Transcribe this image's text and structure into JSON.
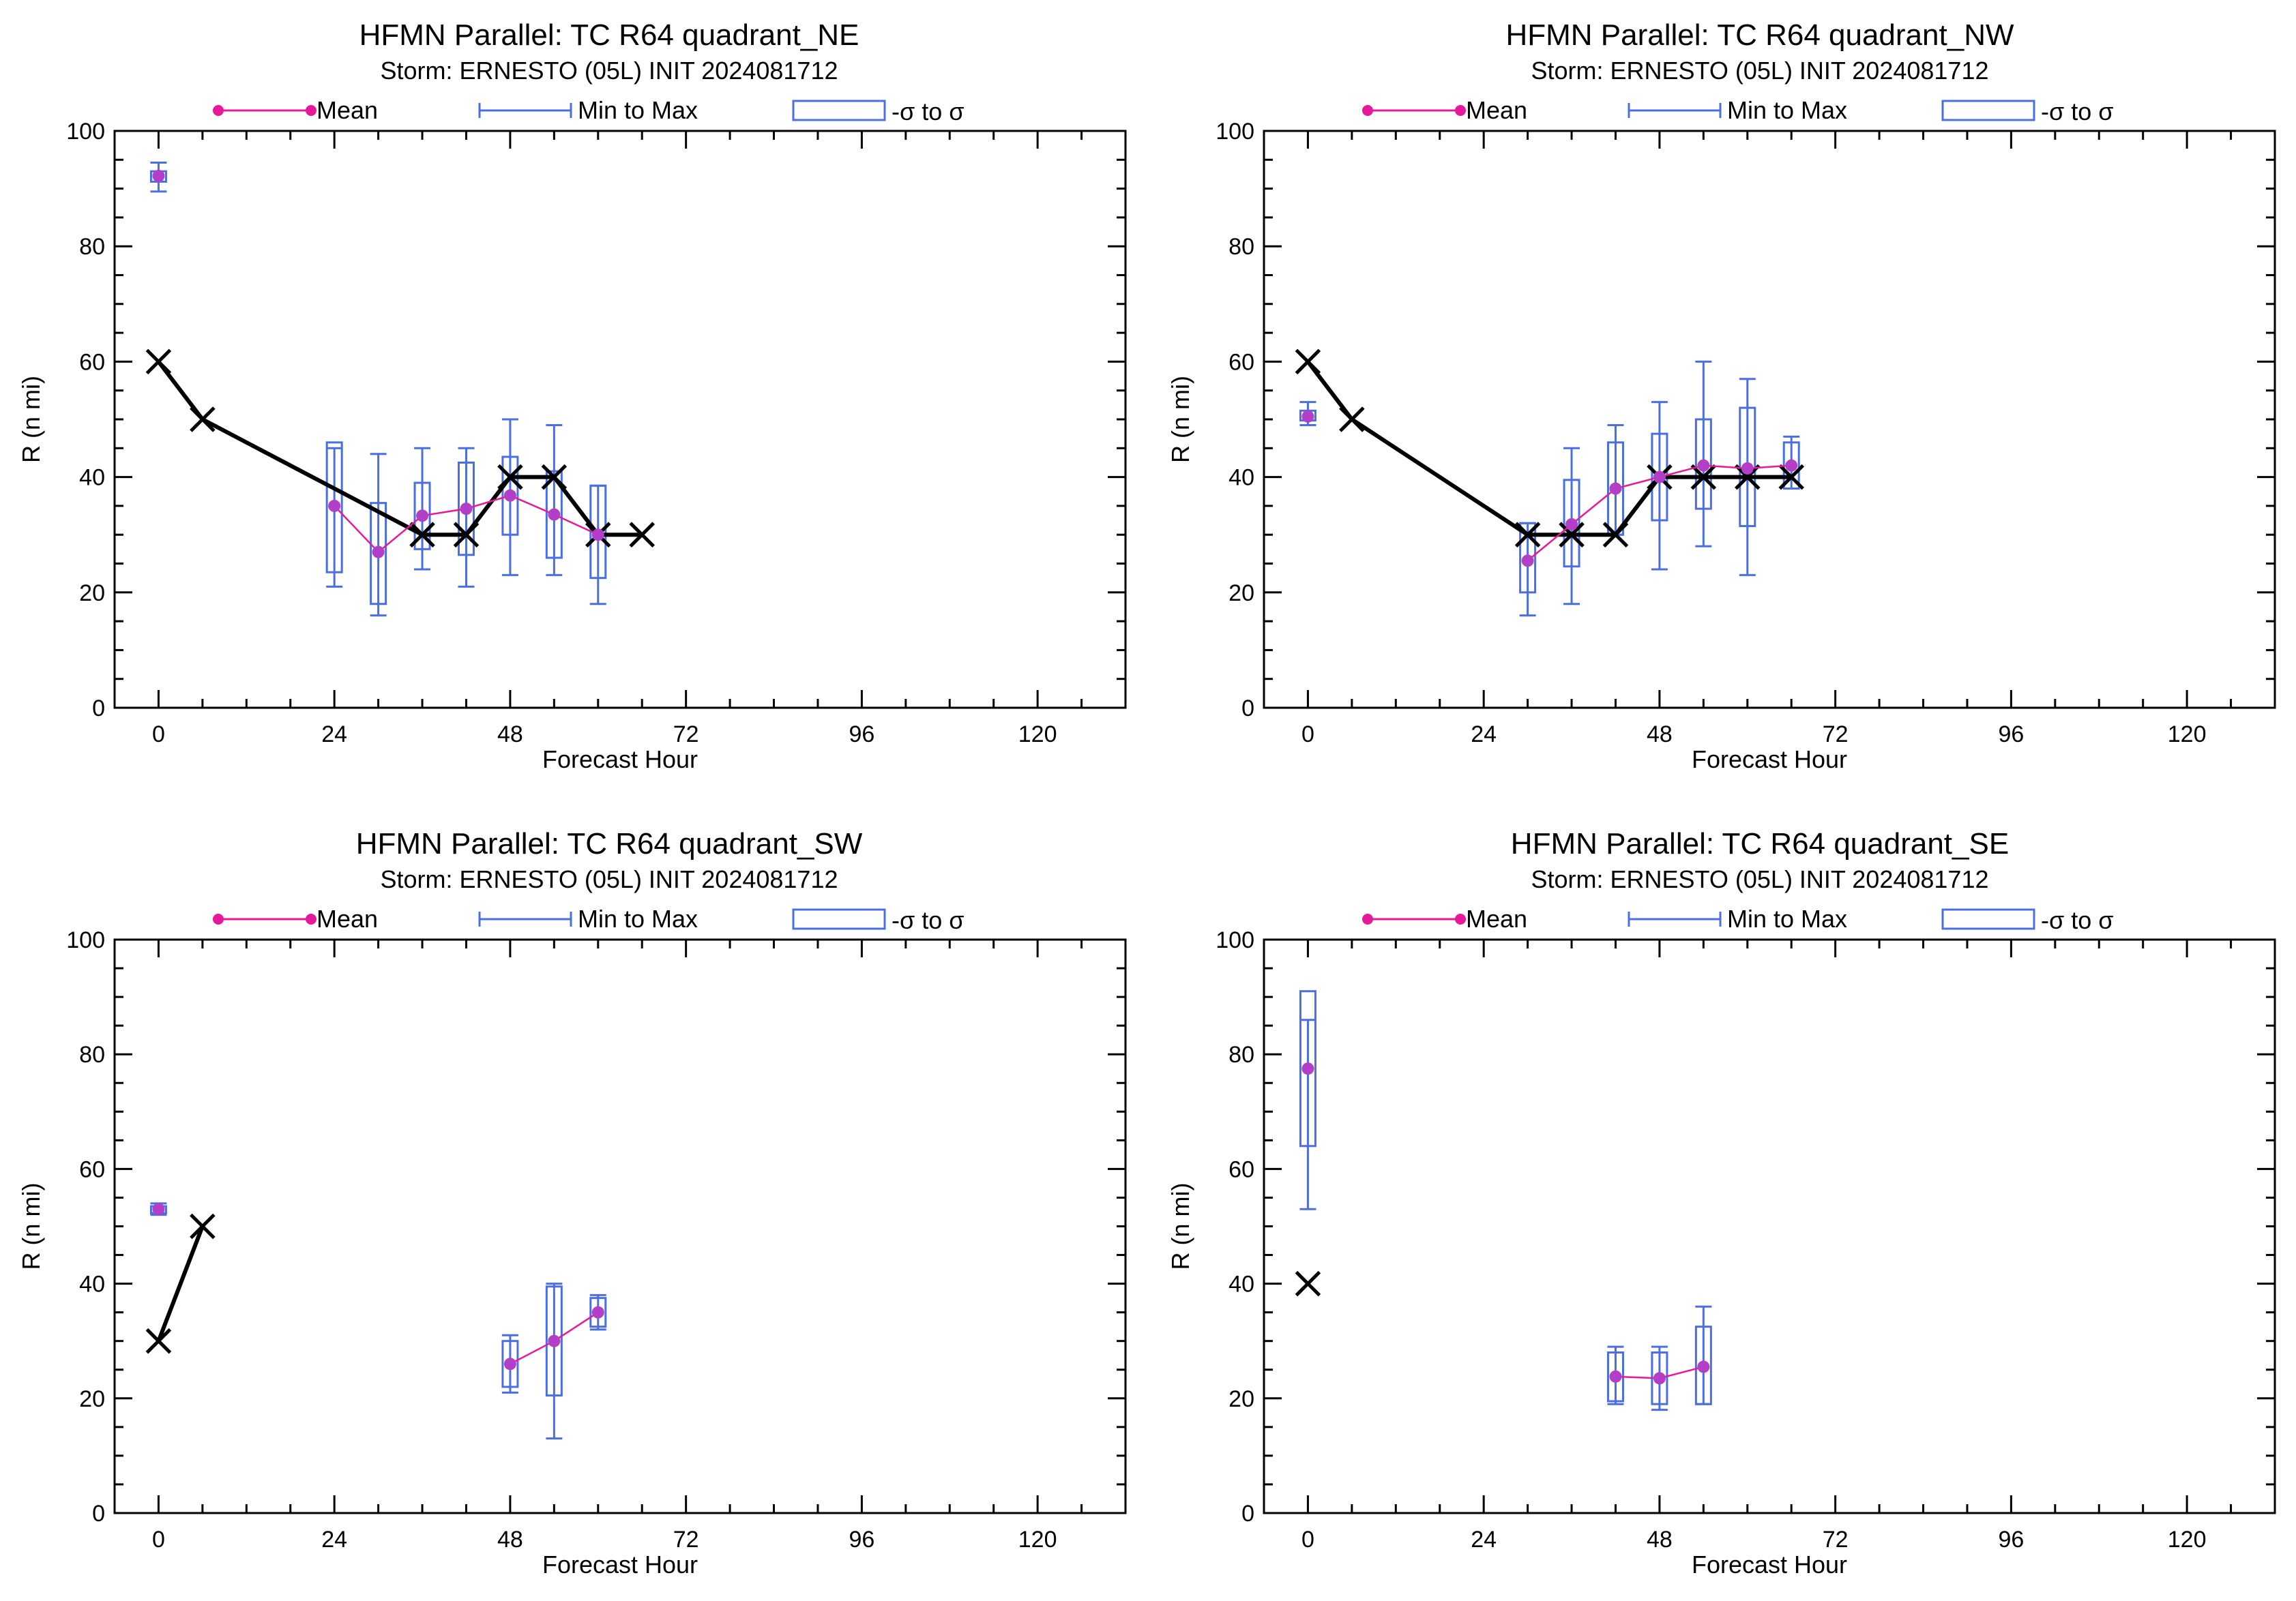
{
  "colors": {
    "mean": "#e8189a",
    "mean_dot": "#b33fc8",
    "range": "#4b6fe0",
    "best_track": "#000000"
  },
  "legend": {
    "mean": "Mean",
    "range": "Min to Max",
    "sigma": "-σ to σ"
  },
  "chart_data": [
    {
      "type": "box",
      "title": "HFMN Parallel: TC  R64 quadrant_NE",
      "subtitle": "Storm: ERNESTO (05L) INIT 2024081712",
      "xlabel": "Forecast Hour",
      "ylabel": "R (n mi)",
      "xlim": [
        -6,
        132
      ],
      "ylim": [
        0,
        100
      ],
      "xticks": [
        0,
        24,
        48,
        72,
        96,
        120
      ],
      "yticks": [
        0,
        20,
        40,
        60,
        80,
        100
      ],
      "legend_position": "top",
      "stats": [
        {
          "x": 0,
          "mean": 92.2,
          "min": 89.5,
          "max": 94.5,
          "sd_low": 91.2,
          "sd_high": 93.0
        },
        {
          "x": 24,
          "mean": 35.0,
          "min": 21.0,
          "max": 45.0,
          "sd_low": 23.5,
          "sd_high": 46.0
        },
        {
          "x": 30,
          "mean": 27.0,
          "min": 16.0,
          "max": 44.0,
          "sd_low": 18.0,
          "sd_high": 35.5
        },
        {
          "x": 36,
          "mean": 33.3,
          "min": 24.0,
          "max": 45.0,
          "sd_low": 27.5,
          "sd_high": 39.0
        },
        {
          "x": 42,
          "mean": 34.5,
          "min": 21.0,
          "max": 45.0,
          "sd_low": 26.5,
          "sd_high": 42.5
        },
        {
          "x": 48,
          "mean": 36.8,
          "min": 23.0,
          "max": 50.0,
          "sd_low": 30.0,
          "sd_high": 43.5
        },
        {
          "x": 54,
          "mean": 33.5,
          "min": 23.0,
          "max": 49.0,
          "sd_low": 26.0,
          "sd_high": 41.0
        },
        {
          "x": 60,
          "mean": 30.0,
          "min": 18.0,
          "max": 38.5,
          "sd_low": 22.5,
          "sd_high": 38.5
        }
      ],
      "best_track": [
        {
          "x": 0,
          "y": 60
        },
        {
          "x": 6,
          "y": 50
        },
        {
          "x": 36,
          "y": 30
        },
        {
          "x": 42,
          "y": 30
        },
        {
          "x": 48,
          "y": 40
        },
        {
          "x": 54,
          "y": 40
        },
        {
          "x": 60,
          "y": 30
        },
        {
          "x": 66,
          "y": 30
        }
      ]
    },
    {
      "type": "box",
      "title": "HFMN Parallel: TC  R64 quadrant_NW",
      "subtitle": "Storm: ERNESTO (05L) INIT 2024081712",
      "xlabel": "Forecast Hour",
      "ylabel": "R (n mi)",
      "xlim": [
        -6,
        132
      ],
      "ylim": [
        0,
        100
      ],
      "xticks": [
        0,
        24,
        48,
        72,
        96,
        120
      ],
      "yticks": [
        0,
        20,
        40,
        60,
        80,
        100
      ],
      "legend_position": "top",
      "stats": [
        {
          "x": 0,
          "mean": 50.5,
          "min": 49.0,
          "max": 53.0,
          "sd_low": 49.8,
          "sd_high": 51.5
        },
        {
          "x": 30,
          "mean": 25.5,
          "min": 16.0,
          "max": 32.0,
          "sd_low": 20.0,
          "sd_high": 32.0
        },
        {
          "x": 36,
          "mean": 31.8,
          "min": 18.0,
          "max": 45.0,
          "sd_low": 24.5,
          "sd_high": 39.5
        },
        {
          "x": 42,
          "mean": 38.0,
          "min": 30.0,
          "max": 49.0,
          "sd_low": 30.0,
          "sd_high": 46.0
        },
        {
          "x": 48,
          "mean": 40.0,
          "min": 24.0,
          "max": 53.0,
          "sd_low": 32.5,
          "sd_high": 47.5
        },
        {
          "x": 54,
          "mean": 42.0,
          "min": 28.0,
          "max": 60.0,
          "sd_low": 34.5,
          "sd_high": 50.0
        },
        {
          "x": 60,
          "mean": 41.5,
          "min": 23.0,
          "max": 57.0,
          "sd_low": 31.5,
          "sd_high": 52.0
        },
        {
          "x": 66,
          "mean": 42.0,
          "min": 38.0,
          "max": 47.0,
          "sd_low": 38.0,
          "sd_high": 46.0
        }
      ],
      "best_track": [
        {
          "x": 0,
          "y": 60
        },
        {
          "x": 6,
          "y": 50
        },
        {
          "x": 30,
          "y": 30
        },
        {
          "x": 36,
          "y": 30
        },
        {
          "x": 42,
          "y": 30
        },
        {
          "x": 48,
          "y": 40
        },
        {
          "x": 54,
          "y": 40
        },
        {
          "x": 60,
          "y": 40
        },
        {
          "x": 66,
          "y": 40
        }
      ]
    },
    {
      "type": "box",
      "title": "HFMN Parallel: TC  R64 quadrant_SW",
      "subtitle": "Storm: ERNESTO (05L) INIT 2024081712",
      "xlabel": "Forecast Hour",
      "ylabel": "R (n mi)",
      "xlim": [
        -6,
        132
      ],
      "ylim": [
        0,
        100
      ],
      "xticks": [
        0,
        24,
        48,
        72,
        96,
        120
      ],
      "yticks": [
        0,
        20,
        40,
        60,
        80,
        100
      ],
      "legend_position": "top",
      "stats": [
        {
          "x": 0,
          "mean": 53.0,
          "min": 52.0,
          "max": 54.0,
          "sd_low": 52.3,
          "sd_high": 53.5
        },
        {
          "x": 48,
          "mean": 26.0,
          "min": 21.0,
          "max": 31.0,
          "sd_low": 22.0,
          "sd_high": 30.0
        },
        {
          "x": 54,
          "mean": 30.0,
          "min": 13.0,
          "max": 40.0,
          "sd_low": 20.5,
          "sd_high": 39.5
        },
        {
          "x": 60,
          "mean": 35.0,
          "min": 32.0,
          "max": 38.0,
          "sd_low": 32.5,
          "sd_high": 37.5
        }
      ],
      "best_track": [
        {
          "x": 0,
          "y": 30
        },
        {
          "x": 6,
          "y": 50
        }
      ]
    },
    {
      "type": "box",
      "title": "HFMN Parallel: TC  R64 quadrant_SE",
      "subtitle": "Storm: ERNESTO (05L) INIT 2024081712",
      "xlabel": "Forecast Hour",
      "ylabel": "R (n mi)",
      "xlim": [
        -6,
        132
      ],
      "ylim": [
        0,
        100
      ],
      "xticks": [
        0,
        24,
        48,
        72,
        96,
        120
      ],
      "yticks": [
        0,
        20,
        40,
        60,
        80,
        100
      ],
      "legend_position": "top",
      "stats": [
        {
          "x": 0,
          "mean": 77.5,
          "min": 53.0,
          "max": 86.0,
          "sd_low": 64.0,
          "sd_high": 91.0
        },
        {
          "x": 42,
          "mean": 23.8,
          "min": 19.0,
          "max": 29.0,
          "sd_low": 19.5,
          "sd_high": 28.0
        },
        {
          "x": 48,
          "mean": 23.5,
          "min": 18.0,
          "max": 29.0,
          "sd_low": 19.0,
          "sd_high": 28.0
        },
        {
          "x": 54,
          "mean": 25.5,
          "min": 19.0,
          "max": 36.0,
          "sd_low": 19.0,
          "sd_high": 32.5
        }
      ],
      "best_track": [
        {
          "x": 0,
          "y": 40
        }
      ]
    }
  ]
}
